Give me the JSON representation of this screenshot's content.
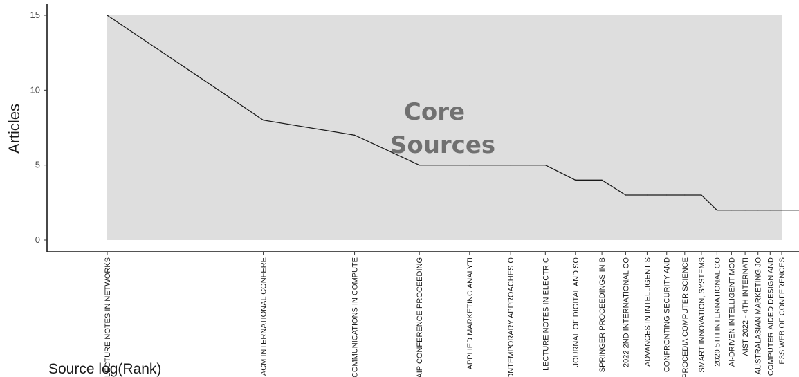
{
  "chart_data": {
    "type": "line",
    "xlabel": "Source log(Rank)",
    "ylabel": "Articles",
    "ylim": [
      0,
      15
    ],
    "yticks": [
      0,
      5,
      10,
      15
    ],
    "grid": false,
    "core_region_label": [
      "Core",
      "Sources"
    ],
    "core_region_color": "#dedede",
    "line_color": "#1a1a1a",
    "sources": [
      {
        "label": "LECTURE NOTES IN NETWORKS",
        "rank": 1,
        "articles": 15
      },
      {
        "label": "ACM INTERNATIONAL CONFERE",
        "rank": 2,
        "articles": 8
      },
      {
        "label": "COMMUNICATIONS IN COMPUTE",
        "rank": 3,
        "articles": 7
      },
      {
        "label": "AIP CONFERENCE PROCEEDING",
        "rank": 4,
        "articles": 5
      },
      {
        "label": "APPLIED MARKETING ANALYTI",
        "rank": 5,
        "articles": 5
      },
      {
        "label": "CONTEMPORARY APPROACHES O",
        "rank": 6,
        "articles": 5
      },
      {
        "label": "LECTURE NOTES IN ELECTRIC",
        "rank": 7,
        "articles": 5
      },
      {
        "label": "JOURNAL OF DIGITAL AND SO",
        "rank": 8,
        "articles": 4
      },
      {
        "label": "SPRINGER PROCEEDINGS IN B",
        "rank": 9,
        "articles": 4
      },
      {
        "label": "2022 2ND INTERNATIONAL CO",
        "rank": 10,
        "articles": 3
      },
      {
        "label": "ADVANCES IN INTELLIGENT S",
        "rank": 11,
        "articles": 3
      },
      {
        "label": "CONFRONTING SECURITY AND",
        "rank": 12,
        "articles": 3
      },
      {
        "label": "PROCEDIA COMPUTER SCIENCE",
        "rank": 13,
        "articles": 3
      },
      {
        "label": "SMART INNOVATION, SYSTEMS",
        "rank": 14,
        "articles": 3
      },
      {
        "label": "2020 5TH INTERNATIONAL CO",
        "rank": 15,
        "articles": 2
      },
      {
        "label": "AI-DRIVEN INTELLIGENT MOD",
        "rank": 16,
        "articles": 2
      },
      {
        "label": "AIST 2022 - 4TH INTERNATI",
        "rank": 17,
        "articles": 2
      },
      {
        "label": "AUSTRALASIAN MARKETING JO",
        "rank": 18,
        "articles": 2
      },
      {
        "label": "COMPUTER-AIDED DESIGN AND",
        "rank": 19,
        "articles": 2
      },
      {
        "label": "E3S WEB OF CONFERENCES",
        "rank": 20,
        "articles": 2
      }
    ],
    "trailing_line_articles": 2
  }
}
